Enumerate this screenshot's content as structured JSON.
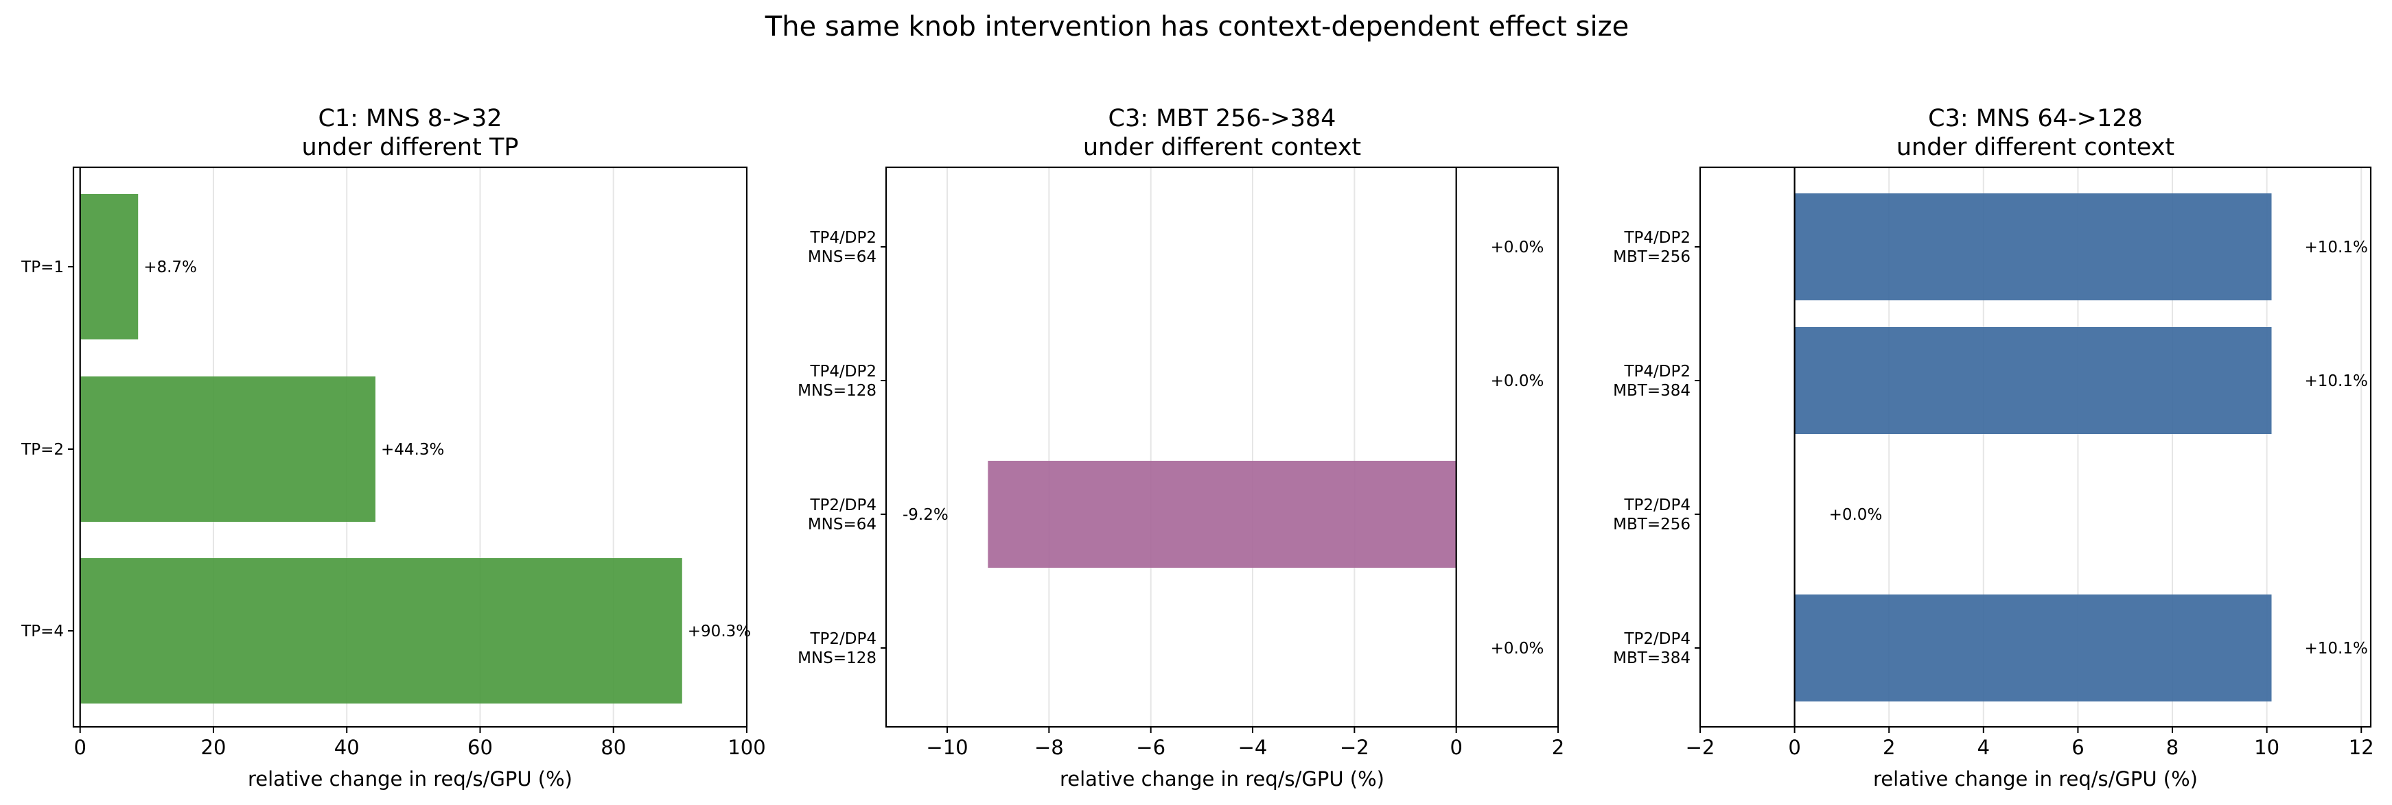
{
  "suptitle": "The same knob intervention has context-dependent effect size",
  "chart_data": [
    {
      "type": "bar",
      "orientation": "horizontal",
      "title": "C1: MNS 8->32\nunder different TP",
      "xlabel": "relative change in req/s/GPU (%)",
      "xlim": [
        -1,
        100
      ],
      "xticks": [
        0,
        20,
        40,
        60,
        80,
        100
      ],
      "categories": [
        "TP=1",
        "TP=2",
        "TP=4"
      ],
      "values": [
        8.7,
        44.3,
        90.3
      ],
      "labels": [
        "+8.7%",
        "+44.3%",
        "+90.3%"
      ],
      "color": "#4c9a3f",
      "grid": true
    },
    {
      "type": "bar",
      "orientation": "horizontal",
      "title": "C3: MBT 256->384\nunder different context",
      "xlabel": "relative change in req/s/GPU (%)",
      "xlim": [
        -11.2,
        2
      ],
      "xticks": [
        -10,
        -8,
        -6,
        -4,
        -2,
        0,
        2
      ],
      "categories": [
        "TP4/DP2\nMNS=64",
        "TP4/DP2\nMNS=128",
        "TP2/DP4\nMNS=64",
        "TP2/DP4\nMNS=128"
      ],
      "values": [
        0.0,
        0.0,
        -9.2,
        0.0
      ],
      "labels": [
        "+0.0%",
        "+0.0%",
        "-9.2%",
        "+0.0%"
      ],
      "color": "#a8699a",
      "grid": true
    },
    {
      "type": "bar",
      "orientation": "horizontal",
      "title": "C3: MNS 64->128\nunder different context",
      "xlabel": "relative change in req/s/GPU (%)",
      "xlim": [
        -2,
        12.2
      ],
      "xticks": [
        -2,
        0,
        2,
        4,
        6,
        8,
        10,
        12
      ],
      "categories": [
        "TP4/DP2\nMBT=256",
        "TP4/DP2\nMBT=384",
        "TP2/DP4\nMBT=256",
        "TP2/DP4\nMBT=384"
      ],
      "values": [
        10.1,
        10.1,
        0.0,
        10.1
      ],
      "labels": [
        "+10.1%",
        "+10.1%",
        "+0.0%",
        "+10.1%"
      ],
      "color": "#3d6a9e",
      "grid": true
    }
  ]
}
